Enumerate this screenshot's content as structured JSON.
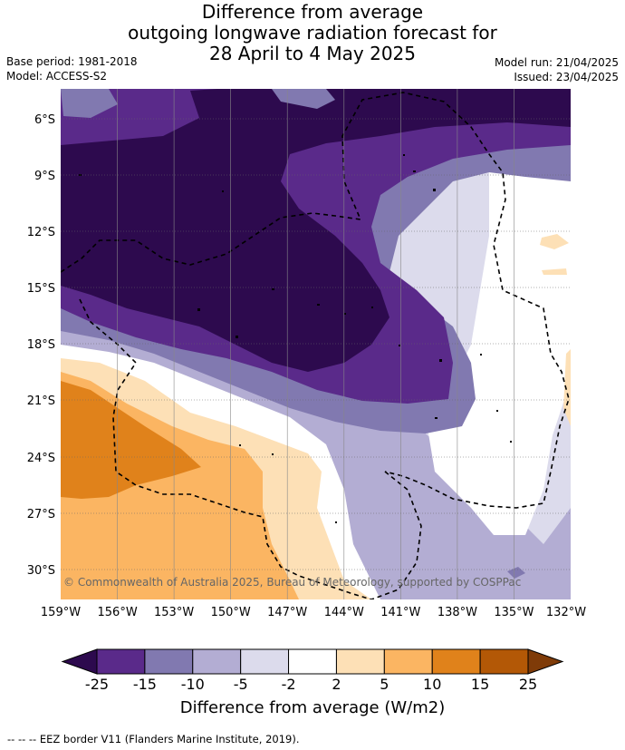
{
  "title": {
    "line1": "Difference from average",
    "line2": "outgoing longwave radiation forecast for",
    "line3": "28 April to 4 May 2025"
  },
  "meta": {
    "base_period": "Base period: 1981-2018",
    "model": "Model: ACCESS-S2",
    "model_run": "Model run: 21/04/2025",
    "issued": "Issued: 23/04/2025"
  },
  "map": {
    "lat_ticks": [
      "6°S",
      "9°S",
      "12°S",
      "15°S",
      "18°S",
      "21°S",
      "24°S",
      "27°S",
      "30°S"
    ],
    "lon_ticks": [
      "159°W",
      "156°W",
      "153°W",
      "150°W",
      "147°W",
      "144°W",
      "141°W",
      "138°W",
      "135°W",
      "132°W"
    ],
    "copyright": "© Commonwealth of Australia 2025, Bureau of Meteorology, supported by COSPPac"
  },
  "colorbar": {
    "ticks": [
      "-25",
      "-15",
      "-10",
      "-5",
      "-2",
      "2",
      "5",
      "10",
      "15",
      "25"
    ],
    "colors": [
      "#2d0a4e",
      "#5a2a8a",
      "#8179b0",
      "#b3add3",
      "#dcdbec",
      "#ffffff",
      "#fde0b6",
      "#fbb562",
      "#e0821b",
      "#b35806",
      "#7f3b08"
    ],
    "label": "Difference from average (W/m2)"
  },
  "footnote": "--  --  -- EEZ border V11 (Flanders Marine Institute, 2019)."
}
